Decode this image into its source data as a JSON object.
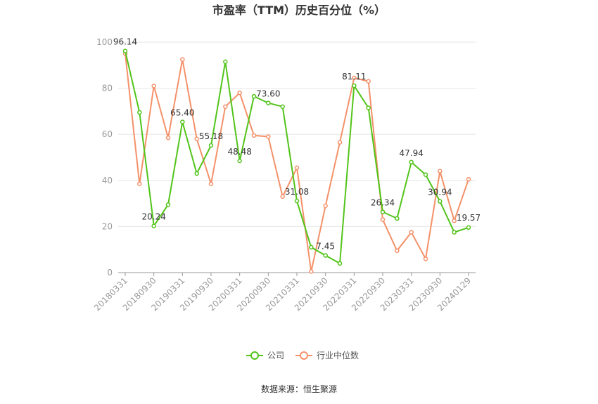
{
  "chart_data": {
    "type": "line",
    "title": "市盈率（TTM）历史百分位（%）",
    "source": "数据来源：恒生聚源",
    "ylim": [
      0,
      100
    ],
    "yticks": [
      0,
      20,
      40,
      60,
      80,
      100
    ],
    "x_tick_labels": [
      "20180331",
      "20180930",
      "20190331",
      "20190930",
      "20200331",
      "20200930",
      "20210331",
      "20210930",
      "20220331",
      "20220930",
      "20230331",
      "20230930",
      "20240129"
    ],
    "legend_position": "bottom",
    "grid": true,
    "series": [
      {
        "name": "公司",
        "color": "#52c41a",
        "values": [
          96.14,
          69.5,
          20.24,
          29.5,
          65.4,
          43.0,
          55.18,
          91.5,
          48.48,
          76.5,
          73.6,
          72.0,
          31.08,
          11.0,
          7.45,
          4.0,
          81.11,
          71.5,
          26.34,
          23.5,
          47.94,
          42.5,
          30.94,
          17.5,
          19.57
        ]
      },
      {
        "name": "行业中位数",
        "color": "#f4916a",
        "values": [
          95.0,
          38.5,
          81.0,
          58.5,
          92.5,
          58.0,
          38.5,
          72.0,
          78.0,
          59.5,
          59.0,
          33.0,
          45.5,
          0.5,
          29.0,
          56.5,
          84.5,
          83.0,
          23.0,
          9.5,
          17.5,
          6.0,
          44.0,
          22.5,
          40.5
        ]
      }
    ],
    "data_labels": [
      {
        "index": 0,
        "text": "96.14"
      },
      {
        "index": 2,
        "text": "20.24"
      },
      {
        "index": 4,
        "text": "65.40"
      },
      {
        "index": 6,
        "text": "55.18"
      },
      {
        "index": 8,
        "text": "48.48"
      },
      {
        "index": 10,
        "text": "73.60"
      },
      {
        "index": 12,
        "text": "31.08"
      },
      {
        "index": 14,
        "text": "7.45"
      },
      {
        "index": 16,
        "text": "81.11"
      },
      {
        "index": 18,
        "text": "26.34"
      },
      {
        "index": 20,
        "text": "47.94"
      },
      {
        "index": 22,
        "text": "30.94"
      },
      {
        "index": 24,
        "text": "19.57"
      }
    ]
  }
}
